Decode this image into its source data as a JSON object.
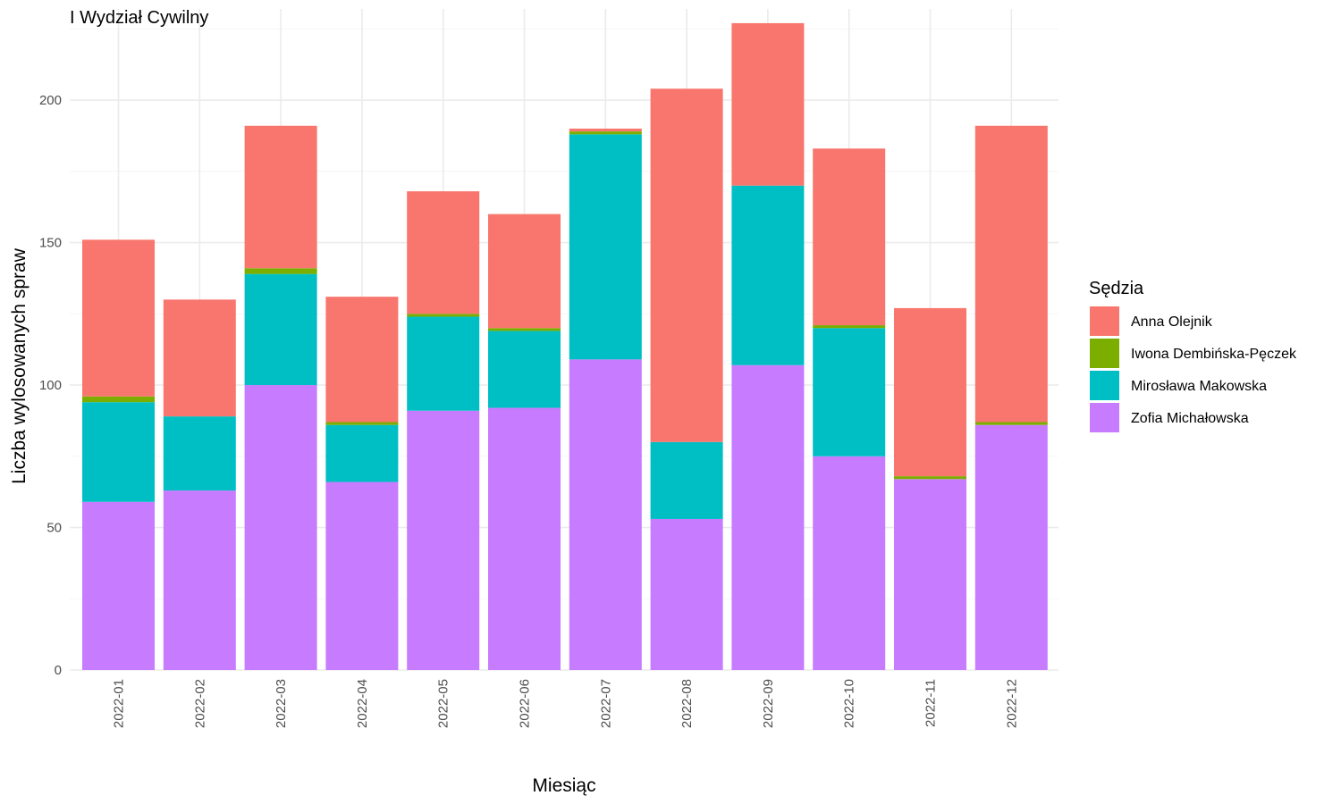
{
  "chart_data": {
    "type": "bar",
    "stacked": true,
    "title": "I Wydział Cywilny",
    "xlabel": "Miesiąc",
    "ylabel": "Liczba wylosowanych spraw",
    "ylim": [
      0,
      232
    ],
    "yticks": [
      0,
      50,
      100,
      150,
      200
    ],
    "grid": true,
    "legend_title": "Sędzia",
    "legend_position": "right",
    "categories": [
      "2022-01",
      "2022-02",
      "2022-03",
      "2022-04",
      "2022-05",
      "2022-06",
      "2022-07",
      "2022-08",
      "2022-09",
      "2022-10",
      "2022-11",
      "2022-12"
    ],
    "series": [
      {
        "name": "Zofia Michałowska",
        "color": "#C77CFF",
        "values": [
          59,
          63,
          100,
          66,
          91,
          92,
          109,
          53,
          107,
          75,
          67,
          86
        ]
      },
      {
        "name": "Mirosława Makowska",
        "color": "#00BFC4",
        "values": [
          35,
          26,
          39,
          20,
          33,
          27,
          79,
          27,
          63,
          45,
          0,
          0
        ]
      },
      {
        "name": "Iwona Dembińska-Pęczek",
        "color": "#7CAE00",
        "values": [
          2,
          0,
          2,
          1,
          1,
          1,
          1,
          0,
          0,
          1,
          1,
          1
        ]
      },
      {
        "name": "Anna Olejnik",
        "color": "#F8766D",
        "values": [
          55,
          41,
          50,
          44,
          43,
          40,
          1,
          124,
          57,
          62,
          59,
          104
        ]
      }
    ],
    "legend_order": [
      "Anna Olejnik",
      "Iwona Dembińska-Pęczek",
      "Mirosława Makowska",
      "Zofia Michałowska"
    ]
  }
}
